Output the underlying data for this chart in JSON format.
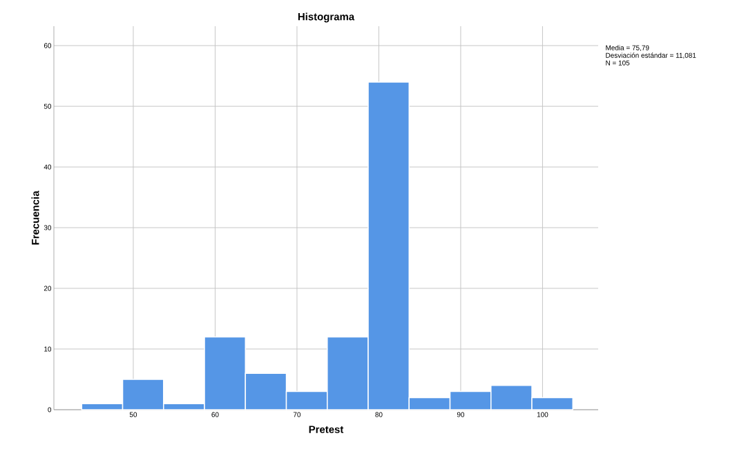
{
  "chart_data": {
    "type": "histogram",
    "title": "Histograma",
    "xlabel": "Pretest",
    "ylabel": "Frecuencia",
    "bins": [
      43.7,
      48.7,
      53.7,
      58.7,
      63.7,
      68.7,
      73.7,
      78.7,
      83.7,
      88.7,
      93.7,
      98.7,
      103.7
    ],
    "values": [
      1,
      5,
      1,
      12,
      6,
      3,
      12,
      54,
      2,
      3,
      4,
      2
    ],
    "color": "#5596e6",
    "xlim": [
      40.3,
      106.8
    ],
    "ylim": [
      0,
      63.2
    ],
    "xticks": [
      50,
      60,
      70,
      80,
      90,
      100
    ],
    "yticks": [
      0,
      10,
      20,
      30,
      40,
      50,
      60
    ],
    "grid": true,
    "annotations": [
      "Media = 75,79",
      "Desviación estándar = 11,081",
      "N = 105"
    ]
  }
}
